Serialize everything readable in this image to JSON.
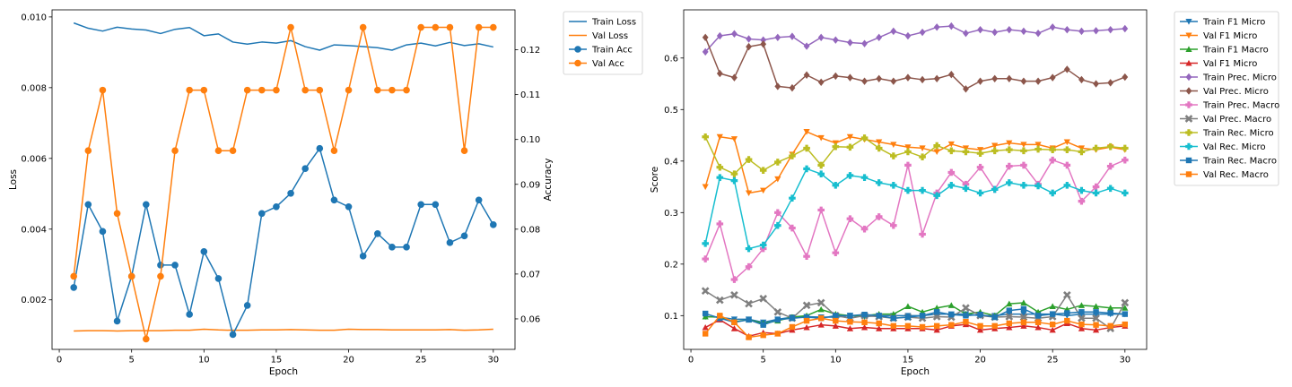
{
  "chart_data": [
    {
      "type": "line",
      "xlabel": "Epoch",
      "ylabel": "Loss",
      "y2label": "Accuracy",
      "xlim": [
        -0.5,
        31.5
      ],
      "xticks": [
        0,
        5,
        10,
        15,
        20,
        25,
        30
      ],
      "ylim": [
        0.0006,
        0.0102
      ],
      "yticks": [
        0.002,
        0.004,
        0.006,
        0.008,
        0.01
      ],
      "ytick_labels": [
        "0.002",
        "0.004",
        "0.006",
        "0.008",
        "0.010"
      ],
      "y2lim": [
        0.0532,
        0.1289
      ],
      "y2ticks": [
        0.06,
        0.07,
        0.08,
        0.09,
        0.1,
        0.11,
        0.12
      ],
      "y2tick_labels": [
        "0.06",
        "0.07",
        "0.08",
        "0.09",
        "0.10",
        "0.11",
        "0.12"
      ],
      "grid": false,
      "legend_position": "outside-top-right",
      "x": [
        1,
        2,
        3,
        4,
        5,
        6,
        7,
        8,
        9,
        10,
        11,
        12,
        13,
        14,
        15,
        16,
        17,
        18,
        19,
        20,
        21,
        22,
        23,
        24,
        25,
        26,
        27,
        28,
        29,
        30
      ],
      "series": [
        {
          "name": "Train Loss",
          "axis": "left",
          "color": "#1f77b4",
          "marker": "none",
          "values": [
            0.00983,
            0.00968,
            0.0096,
            0.00971,
            0.00966,
            0.00963,
            0.00953,
            0.00965,
            0.0097,
            0.00947,
            0.00952,
            0.00929,
            0.00923,
            0.00929,
            0.00926,
            0.00933,
            0.00916,
            0.00906,
            0.00921,
            0.00919,
            0.00916,
            0.00913,
            0.00906,
            0.00921,
            0.00926,
            0.00918,
            0.00928,
            0.00919,
            0.00924,
            0.00915
          ]
        },
        {
          "name": "Val Loss",
          "axis": "left",
          "color": "#ff7f0e",
          "marker": "none",
          "values": [
            0.00112,
            0.00113,
            0.00113,
            0.00112,
            0.00113,
            0.00113,
            0.00113,
            0.00114,
            0.00114,
            0.00117,
            0.00115,
            0.00114,
            0.00114,
            0.00115,
            0.00115,
            0.00116,
            0.00115,
            0.00114,
            0.00114,
            0.00117,
            0.00116,
            0.00116,
            0.00115,
            0.00115,
            0.00115,
            0.00115,
            0.00116,
            0.00114,
            0.00115,
            0.00117
          ]
        },
        {
          "name": "Train Acc",
          "axis": "right",
          "color": "#1f77b4",
          "marker": "circle",
          "values": [
            0.067,
            0.0855,
            0.0795,
            0.0595,
            0.0695,
            0.0855,
            0.072,
            0.072,
            0.061,
            0.075,
            0.069,
            0.0565,
            0.063,
            0.0835,
            0.085,
            0.088,
            0.0935,
            0.098,
            0.0865,
            0.085,
            0.074,
            0.079,
            0.076,
            0.076,
            0.0855,
            0.0855,
            0.077,
            0.0785,
            0.0865,
            0.081
          ]
        },
        {
          "name": "Val Acc",
          "axis": "right",
          "color": "#ff7f0e",
          "marker": "circle",
          "values": [
            0.0695,
            0.0975,
            0.111,
            0.0835,
            0.0695,
            0.0555,
            0.0695,
            0.0975,
            0.111,
            0.111,
            0.0975,
            0.0975,
            0.111,
            0.111,
            0.111,
            0.125,
            0.111,
            0.111,
            0.0975,
            0.111,
            0.125,
            0.111,
            0.111,
            0.111,
            0.125,
            0.125,
            0.125,
            0.0975,
            0.125,
            0.125
          ]
        }
      ]
    },
    {
      "type": "line",
      "xlabel": "Epoch",
      "ylabel": "Score",
      "xlim": [
        -0.5,
        31.5
      ],
      "xticks": [
        0,
        5,
        10,
        15,
        20,
        25,
        30
      ],
      "ylim": [
        0.0345,
        0.6935
      ],
      "yticks": [
        0.1,
        0.2,
        0.3,
        0.4,
        0.5,
        0.6
      ],
      "ytick_labels": [
        "0.1",
        "0.2",
        "0.3",
        "0.4",
        "0.5",
        "0.6"
      ],
      "grid": false,
      "legend_position": "outside-top-right",
      "x": [
        1,
        2,
        3,
        4,
        5,
        6,
        7,
        8,
        9,
        10,
        11,
        12,
        13,
        14,
        15,
        16,
        17,
        18,
        19,
        20,
        21,
        22,
        23,
        24,
        25,
        26,
        27,
        28,
        29,
        30
      ],
      "series": [
        {
          "name": "Train F1 Micro",
          "color": "#1f77b4",
          "marker": "triangle-down",
          "values": [
            0.098,
            0.097,
            0.093,
            0.093,
            0.087,
            0.093,
            0.097,
            0.098,
            0.097,
            0.097,
            0.1,
            0.098,
            0.1,
            0.1,
            0.1,
            0.1,
            0.103,
            0.103,
            0.103,
            0.1,
            0.1,
            0.103,
            0.103,
            0.103,
            0.103,
            0.1,
            0.103,
            0.103,
            0.103,
            0.103
          ]
        },
        {
          "name": "Val F1 Micro",
          "color": "#ff7f0e",
          "marker": "triangle-down",
          "values": [
            0.35,
            0.447,
            0.443,
            0.338,
            0.343,
            0.365,
            0.413,
            0.457,
            0.445,
            0.435,
            0.447,
            0.442,
            0.437,
            0.432,
            0.427,
            0.425,
            0.418,
            0.433,
            0.425,
            0.422,
            0.43,
            0.435,
            0.432,
            0.432,
            0.425,
            0.437,
            0.425,
            0.422,
            0.427,
            0.422
          ]
        },
        {
          "name": "Train F1 Macro",
          "color": "#2ca02c",
          "marker": "triangle-up",
          "values": [
            0.098,
            0.097,
            0.088,
            0.092,
            0.085,
            0.09,
            0.097,
            0.1,
            0.112,
            0.103,
            0.1,
            0.1,
            0.103,
            0.103,
            0.118,
            0.107,
            0.115,
            0.12,
            0.103,
            0.107,
            0.1,
            0.123,
            0.125,
            0.107,
            0.118,
            0.112,
            0.12,
            0.118,
            0.115,
            0.115
          ]
        },
        {
          "name": "Val F1 Micro",
          "color": "#d62728",
          "marker": "triangle-up",
          "values": [
            0.077,
            0.092,
            0.075,
            0.06,
            0.067,
            0.065,
            0.072,
            0.077,
            0.082,
            0.08,
            0.075,
            0.077,
            0.075,
            0.075,
            0.075,
            0.075,
            0.072,
            0.08,
            0.083,
            0.072,
            0.075,
            0.077,
            0.08,
            0.077,
            0.072,
            0.085,
            0.075,
            0.072,
            0.077,
            0.08
          ]
        },
        {
          "name": "Train Prec. Micro",
          "color": "#9467bd",
          "marker": "diamond",
          "values": [
            0.612,
            0.643,
            0.647,
            0.637,
            0.635,
            0.64,
            0.642,
            0.623,
            0.64,
            0.635,
            0.63,
            0.628,
            0.64,
            0.652,
            0.643,
            0.65,
            0.66,
            0.662,
            0.648,
            0.655,
            0.65,
            0.655,
            0.652,
            0.648,
            0.66,
            0.655,
            0.652,
            0.653,
            0.655,
            0.657
          ]
        },
        {
          "name": "Val Prec. Micro",
          "color": "#8c564b",
          "marker": "diamond",
          "values": [
            0.64,
            0.57,
            0.562,
            0.622,
            0.627,
            0.545,
            0.542,
            0.567,
            0.553,
            0.565,
            0.562,
            0.555,
            0.56,
            0.555,
            0.562,
            0.558,
            0.56,
            0.568,
            0.54,
            0.555,
            0.56,
            0.56,
            0.555,
            0.555,
            0.562,
            0.578,
            0.558,
            0.55,
            0.552,
            0.563
          ]
        },
        {
          "name": "Train Prec. Macro",
          "color": "#e377c2",
          "marker": "plus",
          "values": [
            0.21,
            0.278,
            0.17,
            0.195,
            0.23,
            0.3,
            0.27,
            0.215,
            0.305,
            0.222,
            0.288,
            0.268,
            0.292,
            0.275,
            0.392,
            0.258,
            0.338,
            0.378,
            0.355,
            0.388,
            0.345,
            0.39,
            0.392,
            0.355,
            0.402,
            0.392,
            0.322,
            0.35,
            0.39,
            0.402
          ]
        },
        {
          "name": "Val Prec. Macro",
          "color": "#7f7f7f",
          "marker": "x",
          "values": [
            0.148,
            0.13,
            0.14,
            0.123,
            0.133,
            0.107,
            0.095,
            0.12,
            0.125,
            0.1,
            0.095,
            0.1,
            0.098,
            0.095,
            0.097,
            0.095,
            0.098,
            0.097,
            0.115,
            0.1,
            0.097,
            0.098,
            0.097,
            0.095,
            0.098,
            0.14,
            0.095,
            0.095,
            0.075,
            0.125
          ]
        },
        {
          "name": "Train Rec. Micro",
          "color": "#bcbd22",
          "marker": "plus",
          "values": [
            0.447,
            0.388,
            0.375,
            0.403,
            0.382,
            0.398,
            0.41,
            0.425,
            0.392,
            0.428,
            0.427,
            0.445,
            0.425,
            0.41,
            0.418,
            0.408,
            0.43,
            0.42,
            0.418,
            0.415,
            0.42,
            0.422,
            0.42,
            0.423,
            0.422,
            0.422,
            0.418,
            0.425,
            0.428,
            0.425
          ]
        },
        {
          "name": "Val Rec. Micro",
          "color": "#17becf",
          "marker": "plus",
          "values": [
            0.24,
            0.368,
            0.362,
            0.23,
            0.237,
            0.275,
            0.328,
            0.385,
            0.375,
            0.353,
            0.372,
            0.368,
            0.358,
            0.353,
            0.343,
            0.343,
            0.333,
            0.353,
            0.347,
            0.338,
            0.345,
            0.358,
            0.353,
            0.352,
            0.338,
            0.353,
            0.343,
            0.338,
            0.347,
            0.338
          ]
        },
        {
          "name": "Train Rec. Macro",
          "color": "#1f77b4",
          "marker": "square",
          "values": [
            0.104,
            0.095,
            0.087,
            0.092,
            0.082,
            0.092,
            0.095,
            0.097,
            0.095,
            0.1,
            0.1,
            0.102,
            0.1,
            0.095,
            0.097,
            0.1,
            0.107,
            0.102,
            0.1,
            0.102,
            0.097,
            0.11,
            0.113,
            0.1,
            0.103,
            0.105,
            0.107,
            0.107,
            0.105,
            0.103
          ]
        },
        {
          "name": "Val Rec. Macro",
          "color": "#ff7f0e",
          "marker": "square",
          "values": [
            0.065,
            0.1,
            0.087,
            0.058,
            0.062,
            0.065,
            0.078,
            0.09,
            0.095,
            0.09,
            0.088,
            0.087,
            0.085,
            0.08,
            0.08,
            0.078,
            0.08,
            0.082,
            0.088,
            0.08,
            0.08,
            0.085,
            0.087,
            0.087,
            0.083,
            0.09,
            0.083,
            0.082,
            0.08,
            0.083
          ]
        }
      ]
    }
  ]
}
